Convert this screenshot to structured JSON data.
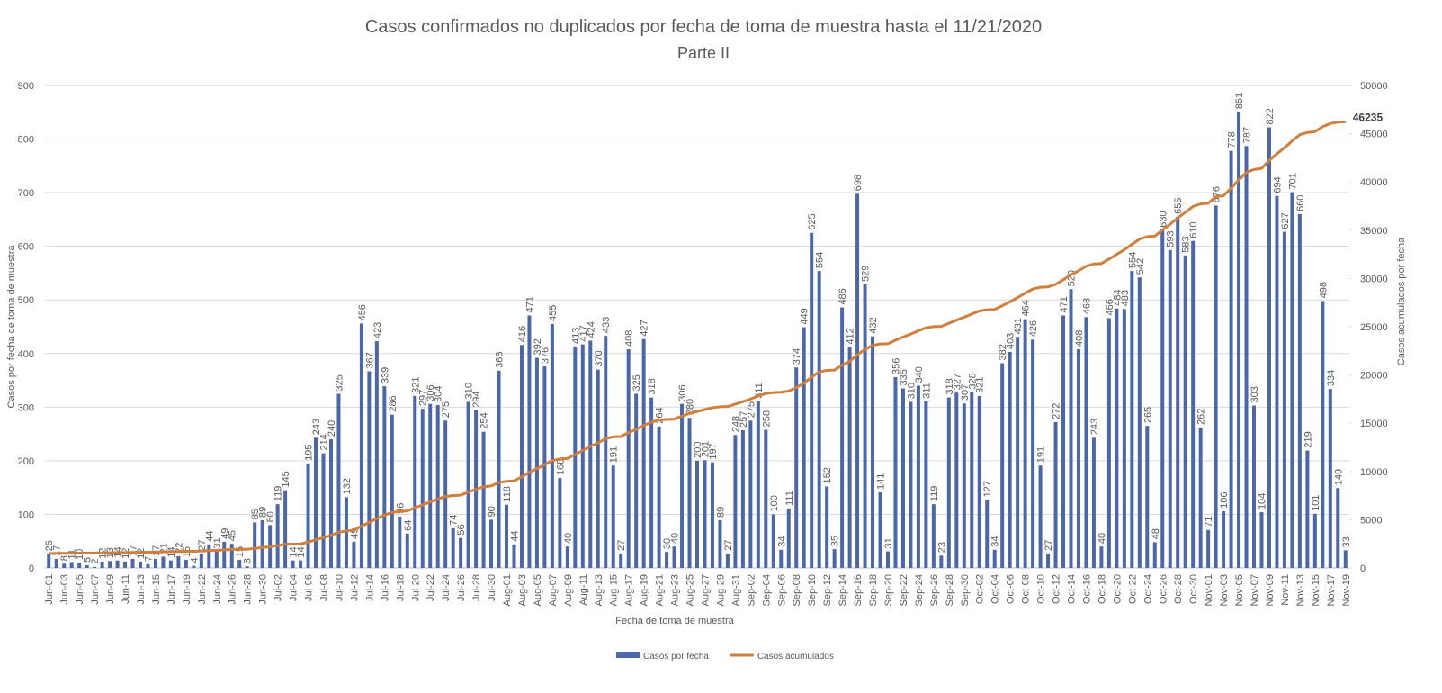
{
  "chart_data": {
    "type": "bar",
    "title": "Casos confirmados no duplicados por fecha de toma de muestra hasta el 11/21/2020",
    "subtitle": "Parte II",
    "xlabel": "Fecha de toma de muestra",
    "ylabel": "Casos por fecha de toma de muestra",
    "y2label": "Casos acumulados por fecha",
    "categories": [
      "Jun-01",
      null,
      "Jun-03",
      null,
      "Jun-05",
      null,
      "Jun-07",
      null,
      "Jun-09",
      null,
      "Jun-11",
      null,
      "Jun-13",
      null,
      "Jun-15",
      null,
      "Jun-17",
      null,
      "Jun-19",
      null,
      "Jun-22",
      null,
      "Jun-24",
      null,
      "Jun-26",
      null,
      "Jun-28",
      null,
      "Jun-30",
      null,
      "Jul-02",
      null,
      "Jul-04",
      null,
      "Jul-06",
      null,
      "Jul-08",
      null,
      "Jul-10",
      null,
      "Jul-12",
      null,
      "Jul-14",
      null,
      "Jul-16",
      null,
      "Jul-18",
      null,
      "Jul-20",
      null,
      "Jul-22",
      null,
      "Jul-24",
      null,
      "Jul-26",
      null,
      "Jul-28",
      null,
      "Jul-30",
      null,
      "Aug-01",
      null,
      "Aug-03",
      null,
      "Aug-05",
      null,
      "Aug-07",
      null,
      "Aug-09",
      null,
      "Aug-11",
      null,
      "Aug-13",
      null,
      "Aug-15",
      null,
      "Aug-17",
      null,
      "Aug-19",
      null,
      "Aug-21",
      null,
      "Aug-23",
      null,
      "Aug-25",
      null,
      "Aug-27",
      null,
      "Aug-29",
      null,
      "Aug-31",
      null,
      "Sep-02",
      null,
      "Sep-04",
      null,
      "Sep-06",
      null,
      "Sep-08",
      null,
      "Sep-10",
      null,
      "Sep-12",
      null,
      "Sep-14",
      null,
      "Sep-16",
      null,
      "Sep-18",
      null,
      "Sep-20",
      null,
      "Sep-22",
      null,
      "Sep-24",
      null,
      "Sep-26",
      null,
      "Sep-28",
      null,
      "Sep-30",
      null,
      "Oct-02",
      null,
      "Oct-04",
      null,
      "Oct-06",
      null,
      "Oct-08",
      null,
      "Oct-10",
      null,
      "Oct-12",
      null,
      "Oct-14",
      null,
      "Oct-16",
      null,
      "Oct-18",
      null,
      "Oct-20",
      null,
      "Oct-22",
      null,
      "Oct-24",
      null,
      "Oct-26",
      null,
      "Oct-28",
      null,
      "Oct-30",
      null,
      "Nov-01",
      null,
      "Nov-03",
      null,
      "Nov-05",
      null,
      "Nov-07",
      null,
      "Nov-09",
      null,
      "Nov-11",
      null,
      "Nov-13",
      null,
      "Nov-15",
      null,
      "Nov-17",
      null,
      "Nov-19"
    ],
    "series": [
      {
        "name": "Casos por fecha",
        "type": "bar",
        "color": "#4a66ac",
        "values": [
          26,
          17,
          8,
          11,
          10,
          5,
          2,
          12,
          13,
          14,
          12,
          17,
          12,
          7,
          17,
          21,
          14,
          22,
          15,
          4,
          27,
          44,
          31,
          49,
          45,
          15,
          3,
          85,
          89,
          80,
          119,
          145,
          14,
          14,
          195,
          243,
          214,
          240,
          325,
          132,
          49,
          456,
          367,
          423,
          339,
          286,
          96,
          64,
          321,
          297,
          306,
          304,
          275,
          74,
          56,
          310,
          294,
          254,
          90,
          368,
          118,
          44,
          416,
          471,
          392,
          376,
          455,
          168,
          40,
          413,
          417,
          424,
          370,
          433,
          191,
          27,
          408,
          325,
          427,
          318,
          264,
          30,
          40,
          306,
          280,
          200,
          201,
          197,
          89,
          27,
          248,
          257,
          275,
          311,
          258,
          100,
          34,
          111,
          374,
          449,
          625,
          554,
          152,
          35,
          486,
          412,
          698,
          529,
          432,
          141,
          31,
          356,
          335,
          310,
          340,
          311,
          119,
          23,
          318,
          327,
          307,
          328,
          321,
          127,
          34,
          382,
          403,
          431,
          464,
          426,
          191,
          27,
          272,
          471,
          520,
          408,
          468,
          243,
          40,
          466,
          484,
          483,
          554,
          542,
          265,
          48,
          630,
          593,
          655,
          583,
          610,
          262,
          71,
          676,
          106,
          778,
          851,
          787,
          303,
          104,
          822,
          694,
          627,
          701,
          660,
          219,
          101,
          498,
          334,
          149,
          33
        ]
      },
      {
        "name": "Casos acumulados",
        "type": "line",
        "axis": "y2",
        "color": "#d07f3c",
        "values": [
          1494,
          1511,
          1519,
          1530,
          1540,
          1545,
          1547,
          1559,
          1572,
          1586,
          1598,
          1615,
          1627,
          1634,
          1651,
          1672,
          1686,
          1708,
          1723,
          1727,
          1754,
          1798,
          1829,
          1878,
          1923,
          1938,
          1941,
          2026,
          2115,
          2195,
          2314,
          2459,
          2473,
          2487,
          2682,
          2925,
          3139,
          3379,
          3704,
          3836,
          3885,
          4341,
          4708,
          5131,
          5470,
          5756,
          5852,
          5916,
          6237,
          6534,
          6840,
          7144,
          7419,
          7493,
          7549,
          7859,
          8153,
          8407,
          8497,
          8865,
          8983,
          9027,
          9443,
          9914,
          10306,
          10682,
          11137,
          11305,
          11345,
          11758,
          12175,
          12599,
          12969,
          13402,
          13593,
          13620,
          14028,
          14353,
          14780,
          15098,
          15362,
          15392,
          15432,
          15738,
          16018,
          16218,
          16419,
          16616,
          16705,
          16732,
          16980,
          17237,
          17512,
          17823,
          18081,
          18181,
          18215,
          18326,
          18700,
          19149,
          19774,
          20328,
          20480,
          20515,
          21001,
          21413,
          22111,
          22640,
          23072,
          23213,
          23244,
          23600,
          23935,
          24245,
          24585,
          24896,
          25015,
          25038,
          25356,
          25683,
          25990,
          26318,
          26639,
          26766,
          26800,
          27182,
          27585,
          28016,
          28480,
          28906,
          29097,
          29124,
          29396,
          29867,
          30387,
          30795,
          31263,
          31506,
          31546,
          32012,
          32496,
          32979,
          33533,
          34075,
          34340,
          34388,
          35018,
          35611,
          36266,
          36849,
          37459,
          37721,
          37792,
          38468,
          38574,
          39352,
          40203,
          40990,
          41293,
          41397,
          42219,
          42913,
          43540,
          44241,
          44901,
          45120,
          45221,
          45719,
          46053,
          46202,
          46235
        ]
      }
    ],
    "ylim": [
      0,
      900
    ],
    "yticks": [
      0,
      100,
      200,
      300,
      400,
      500,
      600,
      700,
      800,
      900
    ],
    "y2lim": [
      0,
      50000
    ],
    "y2ticks": [
      0,
      5000,
      10000,
      15000,
      20000,
      25000,
      30000,
      35000,
      40000,
      45000,
      50000
    ],
    "grid": true,
    "legend": "bottom"
  }
}
